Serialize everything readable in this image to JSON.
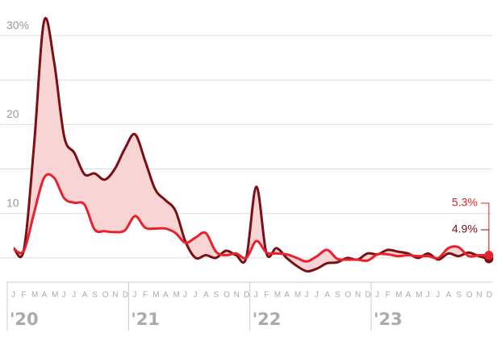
{
  "chart_data": {
    "type": "line",
    "categories": [
      "J",
      "F",
      "M",
      "A",
      "M",
      "J",
      "J",
      "A",
      "S",
      "O",
      "N",
      "D",
      "J",
      "F",
      "M",
      "A",
      "M",
      "J",
      "J",
      "A",
      "S",
      "O",
      "N",
      "D",
      "J",
      "F",
      "M",
      "A",
      "M",
      "J",
      "J",
      "A",
      "S",
      "O",
      "N",
      "D",
      "J",
      "F",
      "M",
      "A",
      "M",
      "J",
      "J",
      "A",
      "S",
      "O",
      "N",
      "D"
    ],
    "year_labels": [
      "'20",
      "'21",
      "'22",
      "'23"
    ],
    "series": [
      {
        "name": "dark",
        "color": "#7a0f14",
        "end_label": "4.9%",
        "values": [
          6.1,
          5.9,
          17.5,
          31.6,
          27,
          18.6,
          16.8,
          14.4,
          14.5,
          13.8,
          15,
          17.3,
          18.9,
          15.9,
          12.7,
          11.5,
          10.3,
          6.8,
          5.0,
          5.3,
          5.0,
          5.8,
          5.3,
          5.0,
          13.0,
          5.5,
          6.1,
          5.0,
          4.1,
          3.5,
          3.8,
          4.4,
          4.5,
          5.0,
          4.8,
          5.5,
          5.4,
          5.9,
          5.7,
          5.5,
          5.0,
          5.5,
          4.8,
          5.5,
          5.2,
          5.6,
          5.2,
          4.9
        ]
      },
      {
        "name": "red",
        "color": "#e8212c",
        "end_label": "5.3%",
        "values": [
          6.0,
          5.8,
          10,
          14,
          14,
          11.7,
          11.2,
          11.0,
          8.2,
          8.0,
          7.9,
          8.1,
          9.7,
          8.4,
          8.3,
          8.3,
          7.8,
          6.7,
          7.3,
          7.8,
          5.7,
          5.3,
          5.5,
          5.0,
          6.9,
          5.6,
          5.5,
          5.4,
          5.0,
          4.6,
          5.2,
          5.9,
          4.9,
          4.8,
          4.8,
          4.7,
          5.4,
          5.4,
          5.2,
          5.3,
          5.2,
          5.2,
          5.0,
          6.1,
          6.2,
          5.2,
          5.3,
          5.3
        ]
      }
    ],
    "ylim": [
      0,
      34
    ],
    "yticks": [
      10,
      20,
      {
        "value": 30,
        "label": "30%"
      }
    ],
    "minor_yticks": [
      5,
      15,
      25
    ],
    "grid": true,
    "fill_between": "#f9d4d5"
  }
}
